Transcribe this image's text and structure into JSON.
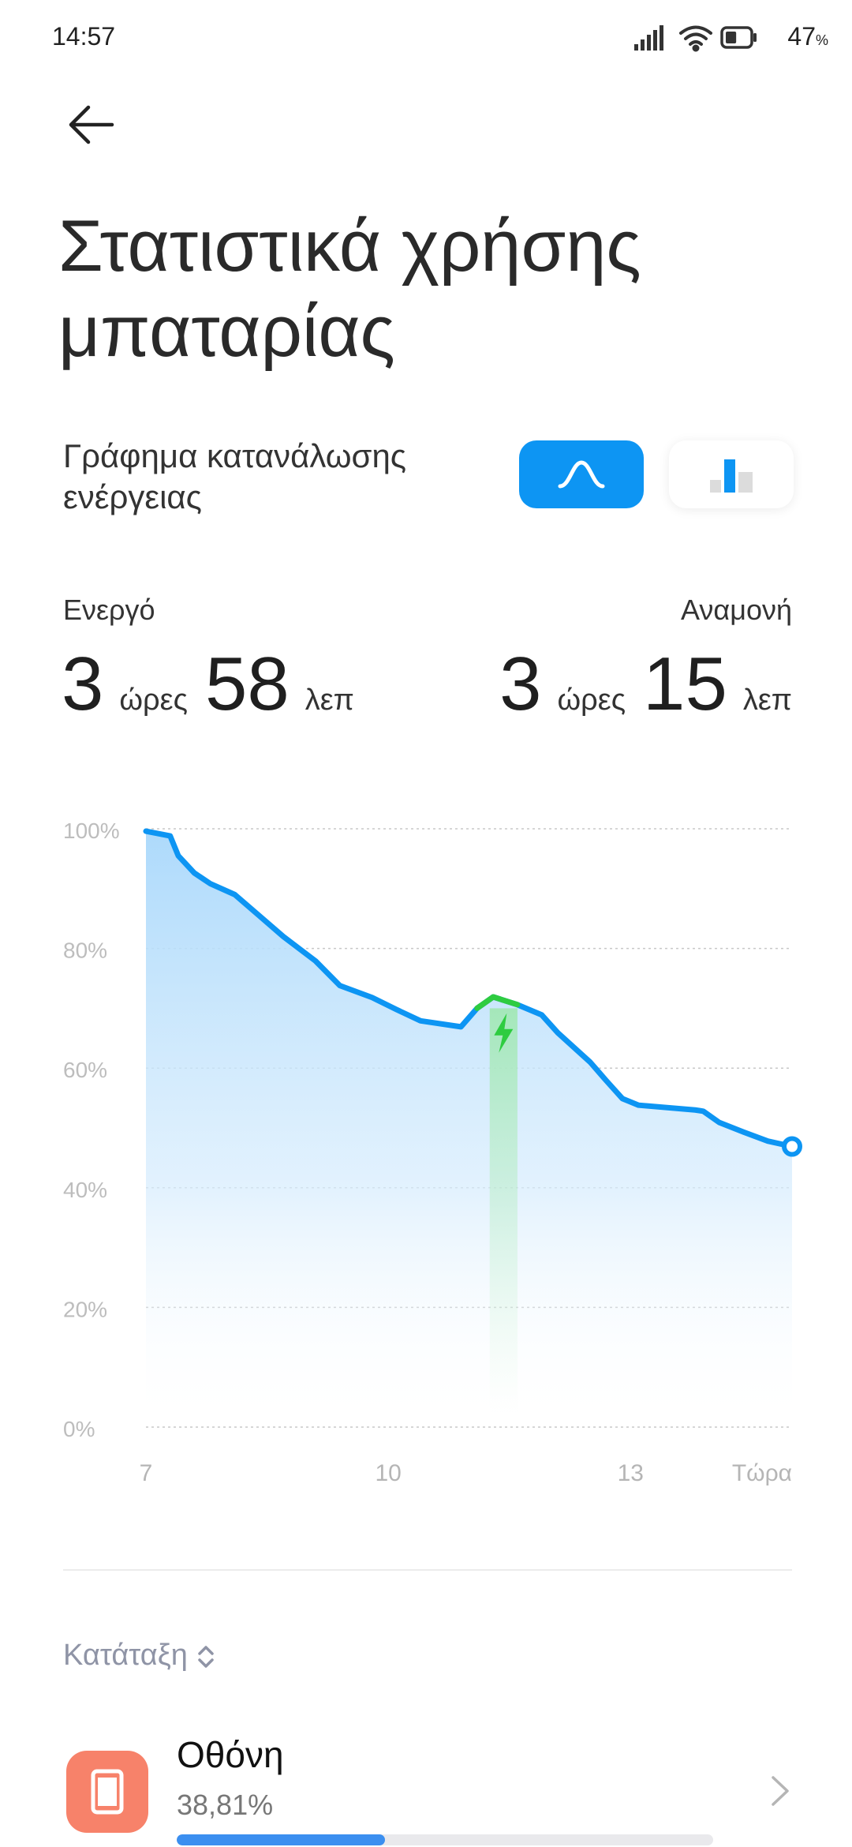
{
  "status_bar": {
    "time": "14:57",
    "battery_percent": "47",
    "battery_suffix": "%",
    "battery_level": 0.47,
    "icons": [
      "signal-icon",
      "wifi-icon",
      "battery-icon"
    ]
  },
  "header": {
    "back_icon": "back-arrow-icon",
    "title": "Στατιστικά χρήσης μπαταρίας"
  },
  "graph_section": {
    "label": "Γράφημα κατανάλωσης ενέργειας",
    "toggles": [
      {
        "name": "curve",
        "icon": "curve-chart-icon",
        "selected": true
      },
      {
        "name": "bars",
        "icon": "bar-chart-icon",
        "selected": false
      }
    ],
    "accent": "#0d95f3"
  },
  "stats": {
    "active": {
      "label": "Ενεργό",
      "hours": "3",
      "hours_unit": "ώρες",
      "minutes": "58",
      "minutes_unit": "λεπ"
    },
    "standby": {
      "label": "Αναμονή",
      "hours": "3",
      "hours_unit": "ώρες",
      "minutes": "15",
      "minutes_unit": "λεπ"
    }
  },
  "chart_data": {
    "type": "area",
    "x_tick_labels": [
      {
        "x": 7,
        "label": "7"
      },
      {
        "x": 10,
        "label": "10"
      },
      {
        "x": 13,
        "label": "13"
      },
      {
        "x": 14.95,
        "label": "Τώρα"
      }
    ],
    "y_tick_labels": [
      "100%",
      "80%",
      "60%",
      "40%",
      "20%",
      "0%"
    ],
    "ylim": [
      0,
      100
    ],
    "xlim": [
      7,
      15
    ],
    "grid": true,
    "series": [
      {
        "values": [
          [
            7.0,
            99.6
          ],
          [
            7.3,
            98.8
          ],
          [
            7.4,
            95.5
          ],
          [
            7.6,
            92.6
          ],
          [
            7.8,
            90.8
          ],
          [
            8.1,
            89.0
          ],
          [
            8.4,
            85.5
          ],
          [
            8.7,
            82.0
          ],
          [
            9.1,
            77.9
          ],
          [
            9.4,
            73.8
          ],
          [
            9.8,
            71.8
          ],
          [
            10.1,
            69.8
          ],
          [
            10.4,
            67.9
          ],
          [
            10.9,
            66.9
          ],
          [
            11.1,
            70.0
          ],
          [
            11.3,
            71.9
          ],
          [
            11.6,
            70.6
          ],
          [
            11.9,
            68.9
          ],
          [
            12.1,
            65.9
          ],
          [
            12.5,
            61.0
          ],
          [
            12.7,
            57.9
          ],
          [
            12.9,
            54.9
          ],
          [
            13.1,
            53.8
          ],
          [
            13.8,
            53.0
          ],
          [
            13.9,
            52.8
          ],
          [
            14.1,
            50.9
          ],
          [
            14.4,
            49.3
          ],
          [
            14.7,
            47.8
          ],
          [
            15.0,
            46.9
          ]
        ],
        "color": "#0d95f3"
      }
    ],
    "charging_interval": {
      "start": 11.1,
      "end": 11.6,
      "color": "#2ecc40",
      "icon": "charging-bolt-icon"
    },
    "current_point": [
      15.0,
      46.9
    ]
  },
  "sort": {
    "label": "Κατάταξη",
    "icon": "sort-updown-icon"
  },
  "usage_items": [
    {
      "name": "Οθόνη",
      "percent_text": "38,81%",
      "fraction": 0.3881,
      "icon": "screen-icon",
      "color": "#f7826a",
      "chevron": "chevron-right-icon"
    }
  ]
}
